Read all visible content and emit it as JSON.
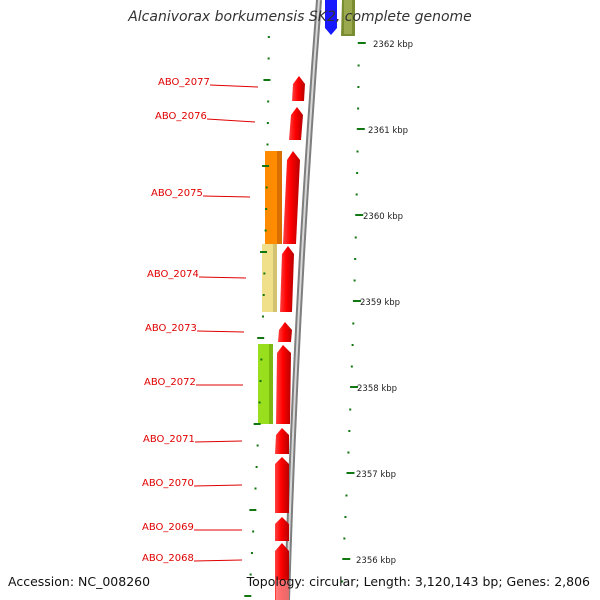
{
  "title": "Alcanivorax borkumensis SK2, complete genome",
  "accession": "Accession: NC_008260",
  "summary": "Topology: circular; Length: 3,120,143 bp; Genes: 2,806",
  "colors": {
    "gene": "#ff0000",
    "tick": "#117711",
    "backbone": "#8a8a8a",
    "label": "#e00000",
    "cog_orange": "#ff8c00",
    "cog_khaki": "#f0e08c",
    "cog_lime": "#9adf1e",
    "top_blue": "#1818ff",
    "top_olive": "#7a8c30"
  },
  "kbp_labels": [
    "2362 kbp",
    "2361 kbp",
    "2360 kbp",
    "2359 kbp",
    "2358 kbp",
    "2357 kbp",
    "2356 kbp"
  ],
  "gene_labels": [
    "ABO_2077",
    "ABO_2076",
    "ABO_2075",
    "ABO_2074",
    "ABO_2073",
    "ABO_2072",
    "ABO_2071",
    "ABO_2070",
    "ABO_2069",
    "ABO_2068"
  ]
}
